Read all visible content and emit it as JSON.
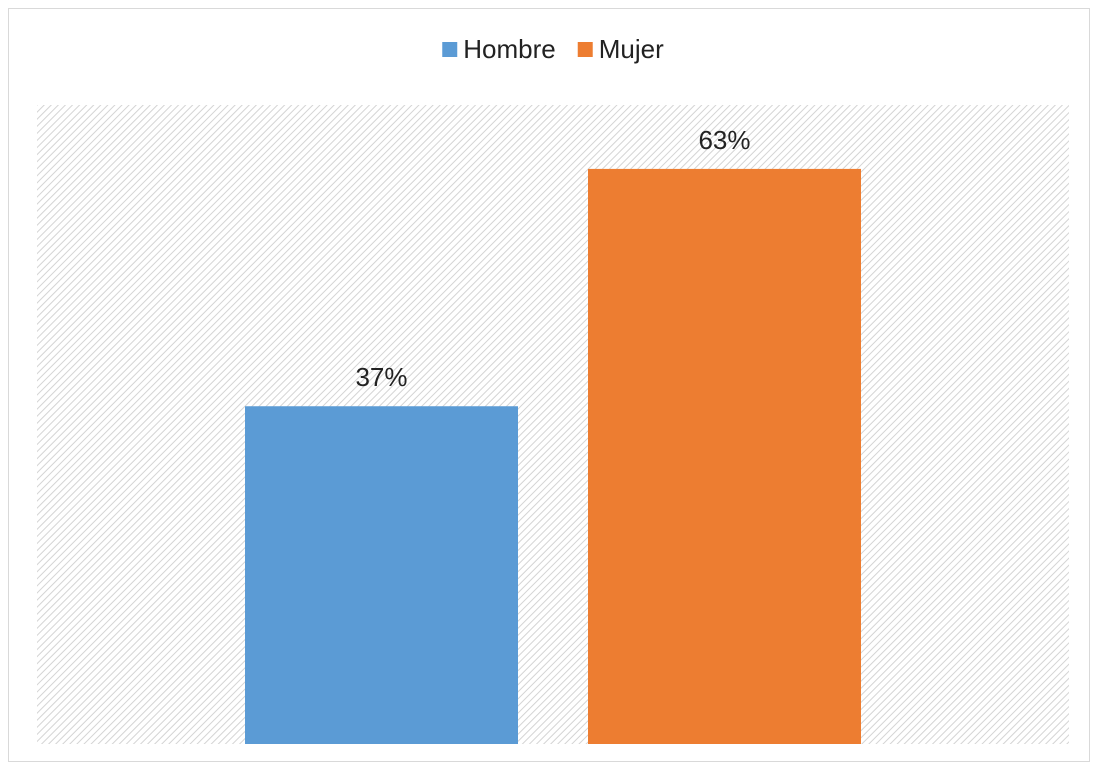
{
  "chart_data": {
    "type": "bar",
    "categories": [
      null
    ],
    "series": [
      {
        "name": "Hombre",
        "color": "#5b9bd5",
        "values": [
          37
        ],
        "value_labels": [
          "37%"
        ]
      },
      {
        "name": "Mujer",
        "color": "#ed7d31",
        "values": [
          63
        ],
        "value_labels": [
          "63%"
        ]
      }
    ],
    "ylim": [
      0,
      70
    ],
    "legend": "top"
  }
}
